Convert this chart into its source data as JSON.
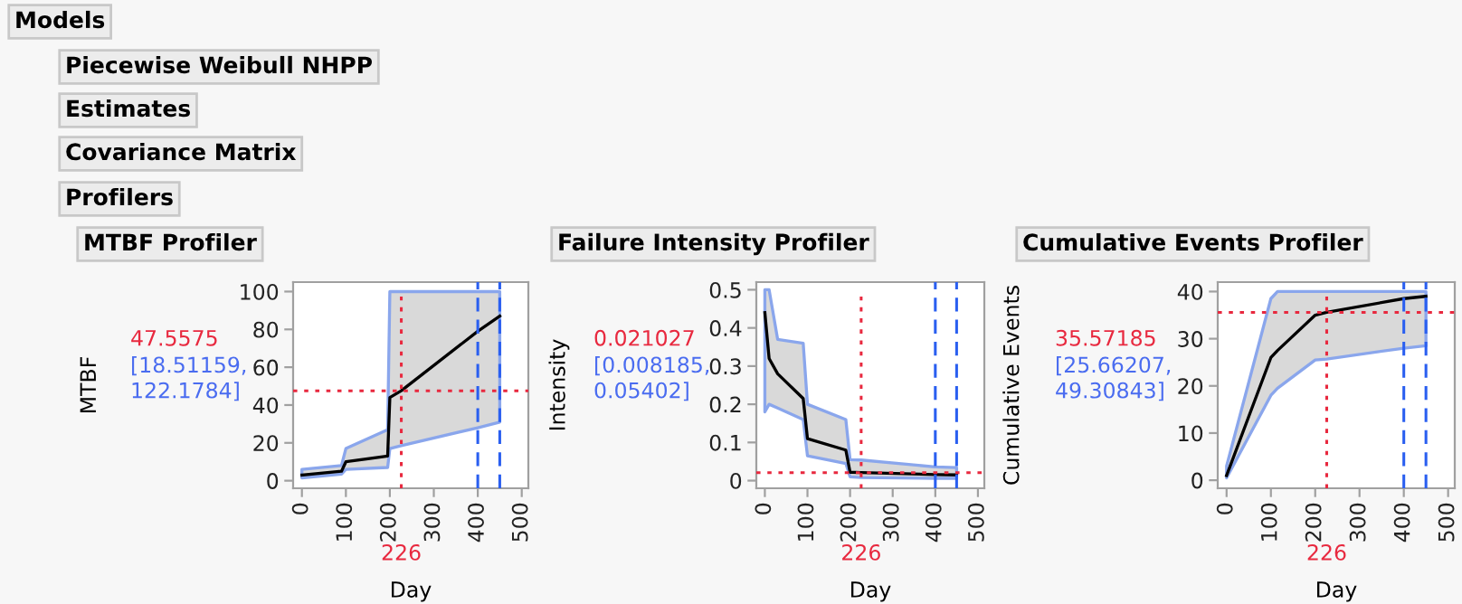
{
  "chart_data": [
    {
      "type": "line",
      "title": "MTBF Profiler",
      "xlabel": "Day",
      "ylabel": "MTBF",
      "annotations": [
        "[18.51159,\n122.1784]",
        "Models",
        "Piecewise Weibull NHPP",
        "Estimates",
        "Covariance Matrix",
        "Profilers"
      ],
      "x": [
        0,
        90,
        100,
        195,
        200,
        226,
        400,
        450
      ],
      "series": [
        {
          "color": "#000000",
          "values": [
            3,
            5,
            10,
            13,
            44,
            47.6,
            79,
            87
          ],
          "lower": [
            1.5,
            3.5,
            6,
            7,
            17,
            18.5,
            28,
            31
          ],
          "upper": [
            6,
            8,
            17,
            27,
            100,
            100,
            100,
            100
          ]
        }
      ],
      "xlim": [
        -20,
        515
      ],
      "xticks": [
        0,
        100,
        200,
        300,
        400,
        500
      ],
      "ylim": [
        -4,
        105
      ],
      "yticks": [
        0,
        20,
        40,
        60,
        80,
        100
      ],
      "ref_lines": [
        {
          "axis": "x",
          "value": 226,
          "label": "226",
          "color": "#e8293f",
          "line_style": "dotted"
        },
        {
          "axis": "y",
          "value": 47.5575,
          "label": "47.5575",
          "color": "#e8293f",
          "line_style": "dotted"
        },
        {
          "axis": "x",
          "value": 400,
          "color": "#2a5ff0",
          "line_style": "dashed"
        },
        {
          "axis": "x",
          "value": 450,
          "color": "#2a5ff0",
          "line_style": "dashed"
        }
      ]
    },
    {
      "type": "line",
      "title": "Failure Intensity Profiler",
      "xlabel": "Day",
      "ylabel": "Intensity",
      "annotations": [
        "[0.008185,\n0.05402]"
      ],
      "x": [
        0,
        10,
        30,
        90,
        100,
        190,
        200,
        226,
        400,
        450
      ],
      "series": [
        {
          "color": "#000000",
          "values": [
            0.44,
            0.32,
            0.28,
            0.215,
            0.11,
            0.08,
            0.022,
            0.021,
            0.016,
            0.015
          ],
          "lower": [
            0.18,
            0.2,
            0.19,
            0.16,
            0.065,
            0.045,
            0.01,
            0.008,
            0.006,
            0.006
          ],
          "upper": [
            0.5,
            0.5,
            0.37,
            0.36,
            0.2,
            0.16,
            0.055,
            0.054,
            0.036,
            0.034
          ]
        }
      ],
      "xlim": [
        -20,
        515
      ],
      "xticks": [
        0,
        100,
        200,
        300,
        400,
        500
      ],
      "ylim": [
        -0.02,
        0.52
      ],
      "yticks": [
        0,
        0.1,
        0.2,
        0.3,
        0.4,
        0.5
      ],
      "ref_lines": [
        {
          "axis": "x",
          "value": 226,
          "label": "226",
          "color": "#e8293f",
          "line_style": "dotted"
        },
        {
          "axis": "y",
          "value": 0.021027,
          "label": "0.021027",
          "color": "#e8293f",
          "line_style": "dotted"
        },
        {
          "axis": "x",
          "value": 400,
          "color": "#2a5ff0",
          "line_style": "dashed"
        },
        {
          "axis": "x",
          "value": 450,
          "color": "#2a5ff0",
          "line_style": "dashed"
        }
      ]
    },
    {
      "type": "line",
      "title": "Cumulative Events Profiler",
      "xlabel": "Day",
      "ylabel": "Cumulative Events",
      "annotations": [
        "[25.66207,\n49.30843]"
      ],
      "x": [
        0,
        100,
        115,
        200,
        226,
        400,
        450
      ],
      "series": [
        {
          "color": "#000000",
          "values": [
            1,
            26,
            27.5,
            35,
            35.6,
            38.5,
            39
          ],
          "lower": [
            0.5,
            18,
            19.5,
            25.5,
            25.7,
            28,
            28.5
          ],
          "upper": [
            3,
            38.5,
            40,
            40,
            40,
            40,
            40
          ]
        }
      ],
      "xlim": [
        -20,
        515
      ],
      "xticks": [
        0,
        100,
        200,
        300,
        400,
        500
      ],
      "ylim": [
        -1.7,
        42
      ],
      "yticks": [
        0,
        10,
        20,
        30,
        40
      ],
      "ref_lines": [
        {
          "axis": "x",
          "value": 226,
          "label": "226",
          "color": "#e8293f",
          "line_style": "dotted"
        },
        {
          "axis": "y",
          "value": 35.57185,
          "label": "35.57185",
          "color": "#e8293f",
          "line_style": "dotted"
        },
        {
          "axis": "x",
          "value": 400,
          "color": "#2a5ff0",
          "line_style": "dashed"
        },
        {
          "axis": "x",
          "value": 450,
          "color": "#2a5ff0",
          "line_style": "dashed"
        }
      ]
    }
  ]
}
